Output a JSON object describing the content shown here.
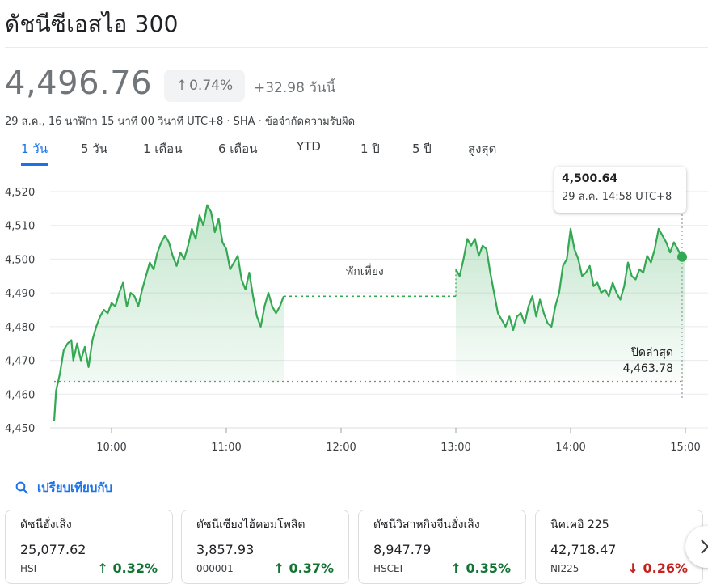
{
  "title": "ดัชนีซีเอสไอ 300",
  "quote": {
    "price": "4,496.76",
    "percent_change": "0.74%",
    "change": "+32.98 วันนี้",
    "meta": "29 ส.ค., 16 นาฬิกา 15 นาที 00 วินาที UTC+8 · SHA · ข้อจำกัดความรับผิด"
  },
  "tabs": [
    "1 วัน",
    "5 วัน",
    "1 เดือน",
    "6 เดือน",
    "YTD",
    "1 ปี",
    "5 ปี",
    "สูงสุด"
  ],
  "active_tab": "1 วัน",
  "chart": {
    "tooltip_value": "4,500.64",
    "tooltip_time": "29 ส.ค. 14:58 UTC+8",
    "break_label": "พักเที่ยง",
    "prev_close_label": "ปิดล่าสุด",
    "prev_close_value": "4,463.78"
  },
  "chart_data": {
    "type": "line",
    "x_tick_labels": [
      "10:00",
      "11:00",
      "12:00",
      "13:00",
      "14:00",
      "15:00"
    ],
    "y_tick_labels": [
      "4,520",
      "4,510",
      "4,500",
      "4,490",
      "4,480",
      "4,470",
      "4,460",
      "4,450"
    ],
    "ylim": [
      4450,
      4520
    ],
    "previous_close": 4463.78,
    "line_color": "#34a853",
    "morning": [
      [
        "9:30",
        4452
      ],
      [
        "9:31",
        4461
      ],
      [
        "9:33",
        4466
      ],
      [
        "9:35",
        4473
      ],
      [
        "9:37",
        4475
      ],
      [
        "9:39",
        4476
      ],
      [
        "9:40",
        4470
      ],
      [
        "9:42",
        4475
      ],
      [
        "9:44",
        4470
      ],
      [
        "9:46",
        4474
      ],
      [
        "9:48",
        4468
      ],
      [
        "9:50",
        4476
      ],
      [
        "9:52",
        4480
      ],
      [
        "9:54",
        4483
      ],
      [
        "9:56",
        4485
      ],
      [
        "9:58",
        4484
      ],
      [
        "10:00",
        4487
      ],
      [
        "10:02",
        4486
      ],
      [
        "10:04",
        4490
      ],
      [
        "10:06",
        4493
      ],
      [
        "10:08",
        4486
      ],
      [
        "10:10",
        4490
      ],
      [
        "10:12",
        4489
      ],
      [
        "10:14",
        4486
      ],
      [
        "10:16",
        4491
      ],
      [
        "10:18",
        4495
      ],
      [
        "10:20",
        4499
      ],
      [
        "10:22",
        4497
      ],
      [
        "10:24",
        4502
      ],
      [
        "10:26",
        4505
      ],
      [
        "10:28",
        4507
      ],
      [
        "10:30",
        4505
      ],
      [
        "10:32",
        4501
      ],
      [
        "10:34",
        4498
      ],
      [
        "10:36",
        4502
      ],
      [
        "10:38",
        4500
      ],
      [
        "10:40",
        4504
      ],
      [
        "10:42",
        4509
      ],
      [
        "10:44",
        4506
      ],
      [
        "10:46",
        4513
      ],
      [
        "10:48",
        4510
      ],
      [
        "10:50",
        4516
      ],
      [
        "10:52",
        4514
      ],
      [
        "10:54",
        4508
      ],
      [
        "10:56",
        4512
      ],
      [
        "10:58",
        4505
      ],
      [
        "11:00",
        4503
      ],
      [
        "11:02",
        4497
      ],
      [
        "11:04",
        4499
      ],
      [
        "11:06",
        4501
      ],
      [
        "11:08",
        4494
      ],
      [
        "11:10",
        4491
      ],
      [
        "11:12",
        4496
      ],
      [
        "11:14",
        4489
      ],
      [
        "11:16",
        4483
      ],
      [
        "11:18",
        4480
      ],
      [
        "11:20",
        4486
      ],
      [
        "11:22",
        4490
      ],
      [
        "11:24",
        4486
      ],
      [
        "11:26",
        4484
      ],
      [
        "11:28",
        4486
      ],
      [
        "11:30",
        4489
      ]
    ],
    "afternoon": [
      [
        "13:00",
        4497
      ],
      [
        "13:02",
        4495
      ],
      [
        "13:04",
        4500
      ],
      [
        "13:06",
        4506
      ],
      [
        "13:08",
        4504
      ],
      [
        "13:10",
        4506
      ],
      [
        "13:12",
        4501
      ],
      [
        "13:14",
        4504
      ],
      [
        "13:16",
        4503
      ],
      [
        "13:18",
        4496
      ],
      [
        "13:20",
        4490
      ],
      [
        "13:22",
        4484
      ],
      [
        "13:24",
        4482
      ],
      [
        "13:26",
        4480
      ],
      [
        "13:28",
        4483
      ],
      [
        "13:30",
        4479
      ],
      [
        "13:32",
        4483
      ],
      [
        "13:34",
        4484
      ],
      [
        "13:36",
        4481
      ],
      [
        "13:38",
        4486
      ],
      [
        "13:40",
        4489
      ],
      [
        "13:42",
        4483
      ],
      [
        "13:44",
        4488
      ],
      [
        "13:46",
        4484
      ],
      [
        "13:48",
        4481
      ],
      [
        "13:50",
        4480
      ],
      [
        "13:52",
        4486
      ],
      [
        "13:54",
        4490
      ],
      [
        "13:56",
        4498
      ],
      [
        "13:58",
        4500
      ],
      [
        "14:00",
        4509
      ],
      [
        "14:02",
        4503
      ],
      [
        "14:04",
        4500
      ],
      [
        "14:06",
        4495
      ],
      [
        "14:08",
        4496
      ],
      [
        "14:10",
        4498
      ],
      [
        "14:12",
        4492
      ],
      [
        "14:14",
        4493
      ],
      [
        "14:16",
        4490
      ],
      [
        "14:18",
        4491
      ],
      [
        "14:20",
        4489
      ],
      [
        "14:22",
        4493
      ],
      [
        "14:24",
        4490
      ],
      [
        "14:26",
        4488
      ],
      [
        "14:28",
        4492
      ],
      [
        "14:30",
        4499
      ],
      [
        "14:32",
        4495
      ],
      [
        "14:34",
        4494
      ],
      [
        "14:36",
        4497
      ],
      [
        "14:38",
        4496
      ],
      [
        "14:40",
        4501
      ],
      [
        "14:42",
        4499
      ],
      [
        "14:44",
        4503
      ],
      [
        "14:46",
        4509
      ],
      [
        "14:48",
        4507
      ],
      [
        "14:50",
        4505
      ],
      [
        "14:52",
        4502
      ],
      [
        "14:54",
        4505
      ],
      [
        "14:56",
        4503
      ],
      [
        "14:58",
        4500.64
      ],
      [
        "15:00",
        4500
      ]
    ]
  },
  "compare": {
    "label": "เปรียบเทียบกับ"
  },
  "cards": [
    {
      "name": "ดัชนีฮั่งเส็ง",
      "value": "25,077.62",
      "symbol": "HSI",
      "arrow": "↑",
      "change": "0.32%",
      "color": "#137333"
    },
    {
      "name": "ดัชนีเซียงไฮ้คอมโพสิต",
      "value": "3,857.93",
      "symbol": "000001",
      "arrow": "↑",
      "change": "0.37%",
      "color": "#137333"
    },
    {
      "name": "ดัชนีวิสาหกิจจีนฮั่งเส็ง",
      "value": "8,947.79",
      "symbol": "HSCEI",
      "arrow": "↑",
      "change": "0.35%",
      "color": "#137333"
    },
    {
      "name": "นิคเคอิ 225",
      "value": "42,718.47",
      "symbol": "NI225",
      "arrow": "↓",
      "change": "0.26%",
      "color": "#c5221f"
    }
  ]
}
